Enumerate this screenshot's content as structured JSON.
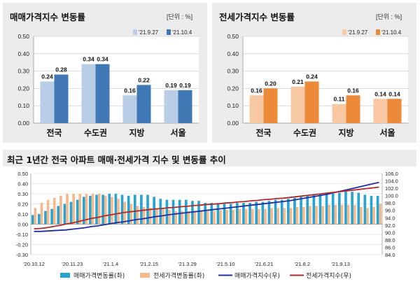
{
  "panels": {
    "sale_title": "매매가격지수 변동률",
    "jeonse_title": "전세가격지수 변동률",
    "unit": "[단위 : %]",
    "bottom_title": "최근 1년간 전국 아파트 매매·전세가격 지수 및 변동률 추이"
  },
  "chart_data": [
    {
      "type": "bar",
      "title": "매매가격지수 변동률",
      "categories": [
        "전국",
        "수도권",
        "지방",
        "서울"
      ],
      "series": [
        {
          "name": "'21.9.27",
          "values": [
            0.24,
            0.34,
            0.16,
            0.19
          ],
          "color": "#b9cde6"
        },
        {
          "name": "'21.10.4",
          "values": [
            0.28,
            0.34,
            0.22,
            0.19
          ],
          "color": "#3f78b5"
        }
      ],
      "ylim": [
        0,
        0.5
      ],
      "yticks": [
        "0.00",
        "0.10",
        "0.20",
        "0.30",
        "0.40",
        "0.50"
      ],
      "value_labels": [
        [
          "0.24",
          "0.34",
          "0.16",
          "0.19"
        ],
        [
          "0.28",
          "0.34",
          "0.22",
          "0.19"
        ]
      ],
      "grid": true,
      "legend": "top-right"
    },
    {
      "type": "bar",
      "title": "전세가격지수 변동률",
      "categories": [
        "전국",
        "수도권",
        "지방",
        "서울"
      ],
      "series": [
        {
          "name": "'21.9.27",
          "values": [
            0.16,
            0.21,
            0.11,
            0.14
          ],
          "color": "#f8c8a2"
        },
        {
          "name": "'21.10.4",
          "values": [
            0.2,
            0.24,
            0.16,
            0.14
          ],
          "color": "#ec8a3a"
        }
      ],
      "ylim": [
        0,
        0.5
      ],
      "yticks": [
        "0.00",
        "0.10",
        "0.20",
        "0.30",
        "0.40",
        "0.50"
      ],
      "value_labels": [
        [
          "0.16",
          "0.21",
          "0.11",
          "0.14"
        ],
        [
          "0.20",
          "0.24",
          "0.16",
          "0.14"
        ]
      ],
      "grid": true,
      "legend": "top-right"
    },
    {
      "type": "bar",
      "title": "최근 1년간 전국 아파트 매매·전세가격 지수 및 변동률 추이",
      "x_ticks": [
        "'20.10.12",
        "'20.11.23",
        "'21.1.4",
        "'21.2.15",
        "'21.3.29",
        "'21.5.10",
        "'21.6.21",
        "'21.8.2",
        "'21.9.13"
      ],
      "y_left_lim": [
        -0.3,
        0.5
      ],
      "y_left_ticks": [
        "0.50",
        "0.40",
        "0.30",
        "0.20",
        "0.10",
        "0.00",
        "-0.10",
        "-0.20",
        "-0.30"
      ],
      "y_right_lim": [
        84.0,
        106.0
      ],
      "y_right_ticks": [
        "106.0",
        "104.0",
        "102.0",
        "100.0",
        "98.0",
        "96.0",
        "94.0",
        "92.0",
        "90.0",
        "88.0",
        "86.0",
        "84.0"
      ],
      "series": [
        {
          "name": "매매가격변동률(좌)",
          "type": "bar",
          "axis": "left",
          "color": "#29a3cf",
          "values": [
            0.09,
            0.1,
            0.13,
            0.15,
            0.18,
            0.2,
            0.22,
            0.24,
            0.27,
            0.28,
            0.29,
            0.29,
            0.3,
            0.3,
            0.29,
            0.28,
            0.29,
            0.29,
            0.29,
            0.27,
            0.25,
            0.24,
            0.24,
            0.24,
            0.24,
            0.23,
            0.23,
            0.21,
            0.21,
            0.2,
            0.2,
            0.2,
            0.21,
            0.21,
            0.21,
            0.22,
            0.22,
            0.23,
            0.24,
            0.24,
            0.25,
            0.26,
            0.27,
            0.28,
            0.29,
            0.3,
            0.3,
            0.3,
            0.31,
            0.32,
            0.32,
            0.31,
            0.29,
            0.28,
            0.28
          ]
        },
        {
          "name": "전세가격변동률(좌)",
          "type": "bar",
          "axis": "left",
          "color": "#f6b98c",
          "values": [
            0.16,
            0.21,
            0.24,
            0.26,
            0.28,
            0.3,
            0.3,
            0.3,
            0.3,
            0.3,
            0.3,
            0.28,
            0.27,
            0.25,
            0.22,
            0.2,
            0.18,
            0.17,
            0.16,
            0.15,
            0.15,
            0.14,
            0.13,
            0.13,
            0.13,
            0.13,
            0.13,
            0.13,
            0.13,
            0.14,
            0.14,
            0.14,
            0.15,
            0.15,
            0.15,
            0.15,
            0.15,
            0.16,
            0.16,
            0.16,
            0.16,
            0.17,
            0.17,
            0.18,
            0.18,
            0.18,
            0.19,
            0.19,
            0.19,
            0.19,
            0.19,
            0.17,
            0.16,
            0.17,
            0.2
          ]
        },
        {
          "name": "매매가격지수(우)",
          "type": "line",
          "axis": "right",
          "color": "#1f2fa0",
          "values": [
            90.3,
            90.3,
            90.4,
            90.5,
            90.6,
            90.7,
            90.9,
            91.1,
            91.3,
            91.6,
            91.8,
            92.1,
            92.4,
            92.7,
            92.9,
            93.2,
            93.5,
            93.7,
            94.0,
            94.3,
            94.5,
            94.8,
            95.0,
            95.2,
            95.4,
            95.6,
            95.8,
            96.0,
            96.2,
            96.4,
            96.6,
            96.8,
            97.0,
            97.2,
            97.4,
            97.6,
            97.8,
            98.0,
            98.2,
            98.4,
            98.6,
            98.9,
            99.2,
            99.5,
            99.8,
            100.1,
            100.4,
            100.8,
            101.2,
            101.6,
            102.0,
            102.4,
            102.8,
            103.2,
            103.6
          ]
        },
        {
          "name": "전세가격지수(우)",
          "type": "line",
          "axis": "right",
          "color": "#b02a2a",
          "values": [
            91.0,
            91.1,
            91.3,
            91.6,
            91.9,
            92.3,
            92.6,
            93.0,
            93.4,
            93.8,
            94.1,
            94.5,
            94.8,
            95.1,
            95.4,
            95.6,
            95.8,
            96.0,
            96.2,
            96.4,
            96.5,
            96.7,
            96.8,
            97.0,
            97.1,
            97.3,
            97.4,
            97.6,
            97.7,
            97.8,
            98.0,
            98.1,
            98.3,
            98.4,
            98.6,
            98.7,
            98.9,
            99.0,
            99.2,
            99.3,
            99.5,
            99.7,
            99.9,
            100.1,
            100.3,
            100.5,
            100.7,
            100.9,
            101.1,
            101.3,
            101.5,
            101.7,
            101.9,
            102.1,
            102.3
          ]
        }
      ],
      "grid": true,
      "legend": "bottom"
    }
  ]
}
